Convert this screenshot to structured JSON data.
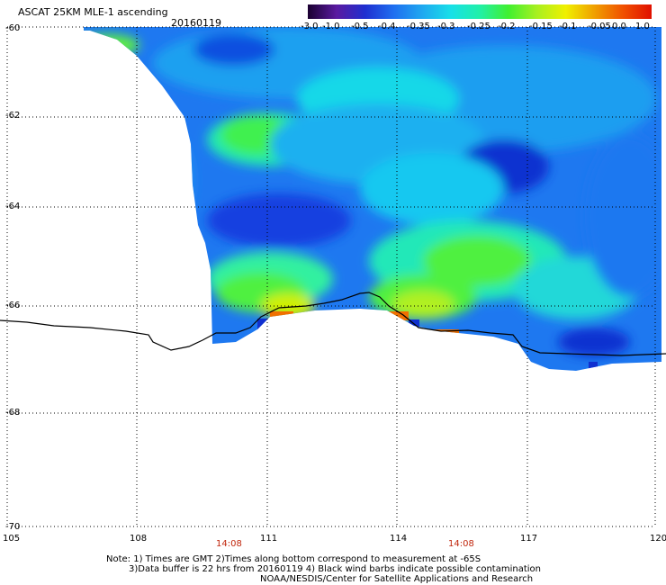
{
  "header": {
    "title": "ASCAT 25KM MLE-1 ascending",
    "date": "20160119"
  },
  "colorbar": {
    "ticks": [
      "-3.0",
      "-1.0",
      "-0.5",
      "-0.4",
      "-0.35",
      "-0.3",
      "-0.25",
      "-0.2",
      "-0.15",
      "-0.1",
      "-0.05",
      "0.0",
      "1.0"
    ],
    "colors": [
      "#1a0030",
      "#5a1aa0",
      "#1f2fd0",
      "#1f6ff0",
      "#1fa8f0",
      "#18e0e8",
      "#20f0a8",
      "#40f030",
      "#a8f020",
      "#f0f000",
      "#f0a000",
      "#f05000",
      "#e01000"
    ]
  },
  "axes": {
    "lat_labels": [
      "-60",
      "-62",
      "-64",
      "-66",
      "-68",
      "-70"
    ],
    "lon_labels": [
      "105",
      "108",
      "111",
      "114",
      "117",
      "120"
    ]
  },
  "pass_times": [
    "14:08",
    "14:08"
  ],
  "footnote": {
    "line1": "Note: 1) Times are GMT 2)Times along bottom correspond to measurement at -65S",
    "line2": "3)Data buffer is 22 hrs from 20160119 4) Black wind barbs indicate possible contamination",
    "line3": "NOAA/NESDIS/Center for Satellite Applications and Research"
  }
}
